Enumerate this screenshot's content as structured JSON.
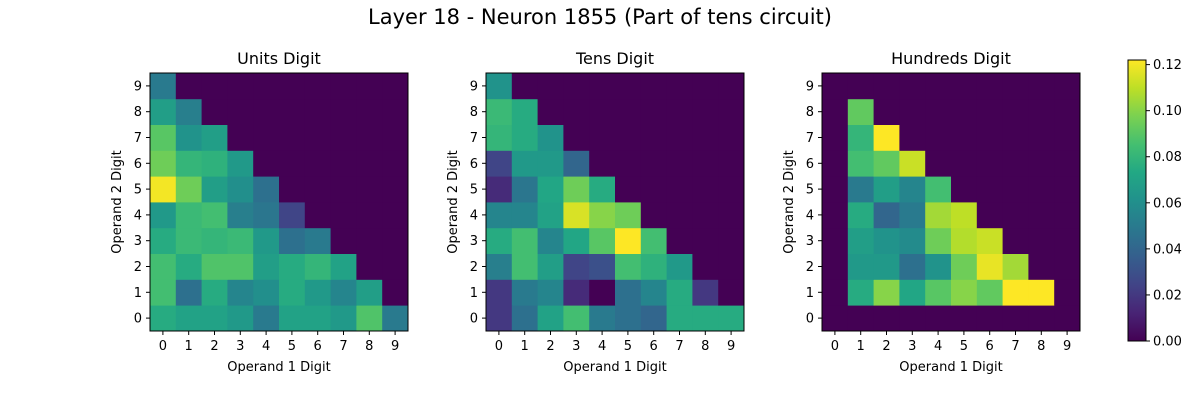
{
  "figure": {
    "title": "Layer 18 - Neuron 1855 (Part of tens circuit)"
  },
  "chart_data": [
    {
      "type": "heatmap",
      "title": "Units Digit",
      "xlabel": "Operand 1 Digit",
      "ylabel": "Operand 2 Digit",
      "x": [
        0,
        1,
        2,
        3,
        4,
        5,
        6,
        7,
        8,
        9
      ],
      "y": [
        0,
        1,
        2,
        3,
        4,
        5,
        6,
        7,
        8,
        9
      ],
      "values_by_row_y": [
        [
          0.075,
          0.07,
          0.07,
          0.065,
          0.05,
          0.07,
          0.07,
          0.065,
          0.088,
          0.05
        ],
        [
          0.085,
          0.045,
          0.075,
          0.055,
          0.06,
          0.075,
          0.065,
          0.055,
          0.068,
          0.0
        ],
        [
          0.085,
          0.075,
          0.088,
          0.088,
          0.068,
          0.075,
          0.08,
          0.07,
          0.0,
          0.0
        ],
        [
          0.075,
          0.082,
          0.08,
          0.082,
          0.065,
          0.045,
          0.05,
          0.0,
          0.0,
          0.0
        ],
        [
          0.065,
          0.082,
          0.085,
          0.052,
          0.048,
          0.025,
          0.0,
          0.0,
          0.0,
          0.0
        ],
        [
          0.12,
          0.095,
          0.068,
          0.06,
          0.045,
          0.0,
          0.0,
          0.0,
          0.0,
          0.0
        ],
        [
          0.095,
          0.08,
          0.078,
          0.065,
          0.0,
          0.0,
          0.0,
          0.0,
          0.0,
          0.0
        ],
        [
          0.09,
          0.062,
          0.068,
          0.0,
          0.0,
          0.0,
          0.0,
          0.0,
          0.0,
          0.0
        ],
        [
          0.068,
          0.052,
          0.0,
          0.0,
          0.0,
          0.0,
          0.0,
          0.0,
          0.0,
          0.0
        ],
        [
          0.05,
          0.0,
          0.0,
          0.0,
          0.0,
          0.0,
          0.0,
          0.0,
          0.0,
          0.0
        ]
      ]
    },
    {
      "type": "heatmap",
      "title": "Tens Digit",
      "xlabel": "Operand 1 Digit",
      "ylabel": "Operand 2 Digit",
      "x": [
        0,
        1,
        2,
        3,
        4,
        5,
        6,
        7,
        8,
        9
      ],
      "y": [
        0,
        1,
        2,
        3,
        4,
        5,
        6,
        7,
        8,
        9
      ],
      "values_by_row_y": [
        [
          0.02,
          0.045,
          0.07,
          0.085,
          0.05,
          0.045,
          0.04,
          0.075,
          0.075,
          0.075
        ],
        [
          0.02,
          0.05,
          0.055,
          0.015,
          0.0,
          0.045,
          0.055,
          0.075,
          0.02,
          0.0
        ],
        [
          0.052,
          0.085,
          0.068,
          0.025,
          0.03,
          0.085,
          0.078,
          0.065,
          0.0,
          0.0
        ],
        [
          0.075,
          0.085,
          0.055,
          0.072,
          0.09,
          0.122,
          0.085,
          0.0,
          0.0,
          0.0
        ],
        [
          0.055,
          0.055,
          0.07,
          0.115,
          0.1,
          0.095,
          0.0,
          0.0,
          0.0,
          0.0
        ],
        [
          0.015,
          0.048,
          0.072,
          0.095,
          0.075,
          0.0,
          0.0,
          0.0,
          0.0,
          0.0
        ],
        [
          0.025,
          0.065,
          0.065,
          0.04,
          0.0,
          0.0,
          0.0,
          0.0,
          0.0,
          0.0
        ],
        [
          0.08,
          0.075,
          0.062,
          0.0,
          0.0,
          0.0,
          0.0,
          0.0,
          0.0,
          0.0
        ],
        [
          0.082,
          0.075,
          0.0,
          0.0,
          0.0,
          0.0,
          0.0,
          0.0,
          0.0,
          0.0
        ],
        [
          0.062,
          0.0,
          0.0,
          0.0,
          0.0,
          0.0,
          0.0,
          0.0,
          0.0,
          0.0
        ]
      ]
    },
    {
      "type": "heatmap",
      "title": "Hundreds Digit",
      "xlabel": "Operand 1 Digit",
      "ylabel": "Operand 2 Digit",
      "x": [
        0,
        1,
        2,
        3,
        4,
        5,
        6,
        7,
        8,
        9
      ],
      "y": [
        0,
        1,
        2,
        3,
        4,
        5,
        6,
        7,
        8,
        9
      ],
      "values_by_row_y": [
        [
          0.0,
          0.0,
          0.0,
          0.0,
          0.0,
          0.0,
          0.0,
          0.0,
          0.0,
          0.0
        ],
        [
          0.0,
          0.075,
          0.1,
          0.072,
          0.09,
          0.1,
          0.092,
          0.122,
          0.122,
          0.0
        ],
        [
          0.0,
          0.065,
          0.065,
          0.045,
          0.062,
          0.095,
          0.118,
          0.105,
          0.0,
          0.0
        ],
        [
          0.0,
          0.068,
          0.062,
          0.058,
          0.095,
          0.108,
          0.112,
          0.0,
          0.0,
          0.0
        ],
        [
          0.0,
          0.075,
          0.04,
          0.05,
          0.105,
          0.11,
          0.0,
          0.0,
          0.0,
          0.0
        ],
        [
          0.0,
          0.05,
          0.068,
          0.055,
          0.085,
          0.0,
          0.0,
          0.0,
          0.0,
          0.0
        ],
        [
          0.0,
          0.085,
          0.092,
          0.112,
          0.0,
          0.0,
          0.0,
          0.0,
          0.0,
          0.0
        ],
        [
          0.0,
          0.08,
          0.122,
          0.0,
          0.0,
          0.0,
          0.0,
          0.0,
          0.0,
          0.0
        ],
        [
          0.0,
          0.092,
          0.0,
          0.0,
          0.0,
          0.0,
          0.0,
          0.0,
          0.0,
          0.0
        ],
        [
          0.0,
          0.0,
          0.0,
          0.0,
          0.0,
          0.0,
          0.0,
          0.0,
          0.0,
          0.0
        ]
      ]
    }
  ],
  "colorbar": {
    "colormap": "viridis",
    "vmin": 0.0,
    "vmax": 0.122,
    "ticks": [
      0.0,
      0.02,
      0.04,
      0.06,
      0.08,
      0.1,
      0.12
    ],
    "tick_labels": [
      "0.00",
      "0.02",
      "0.04",
      "0.06",
      "0.08",
      "0.10",
      "0.12"
    ]
  }
}
